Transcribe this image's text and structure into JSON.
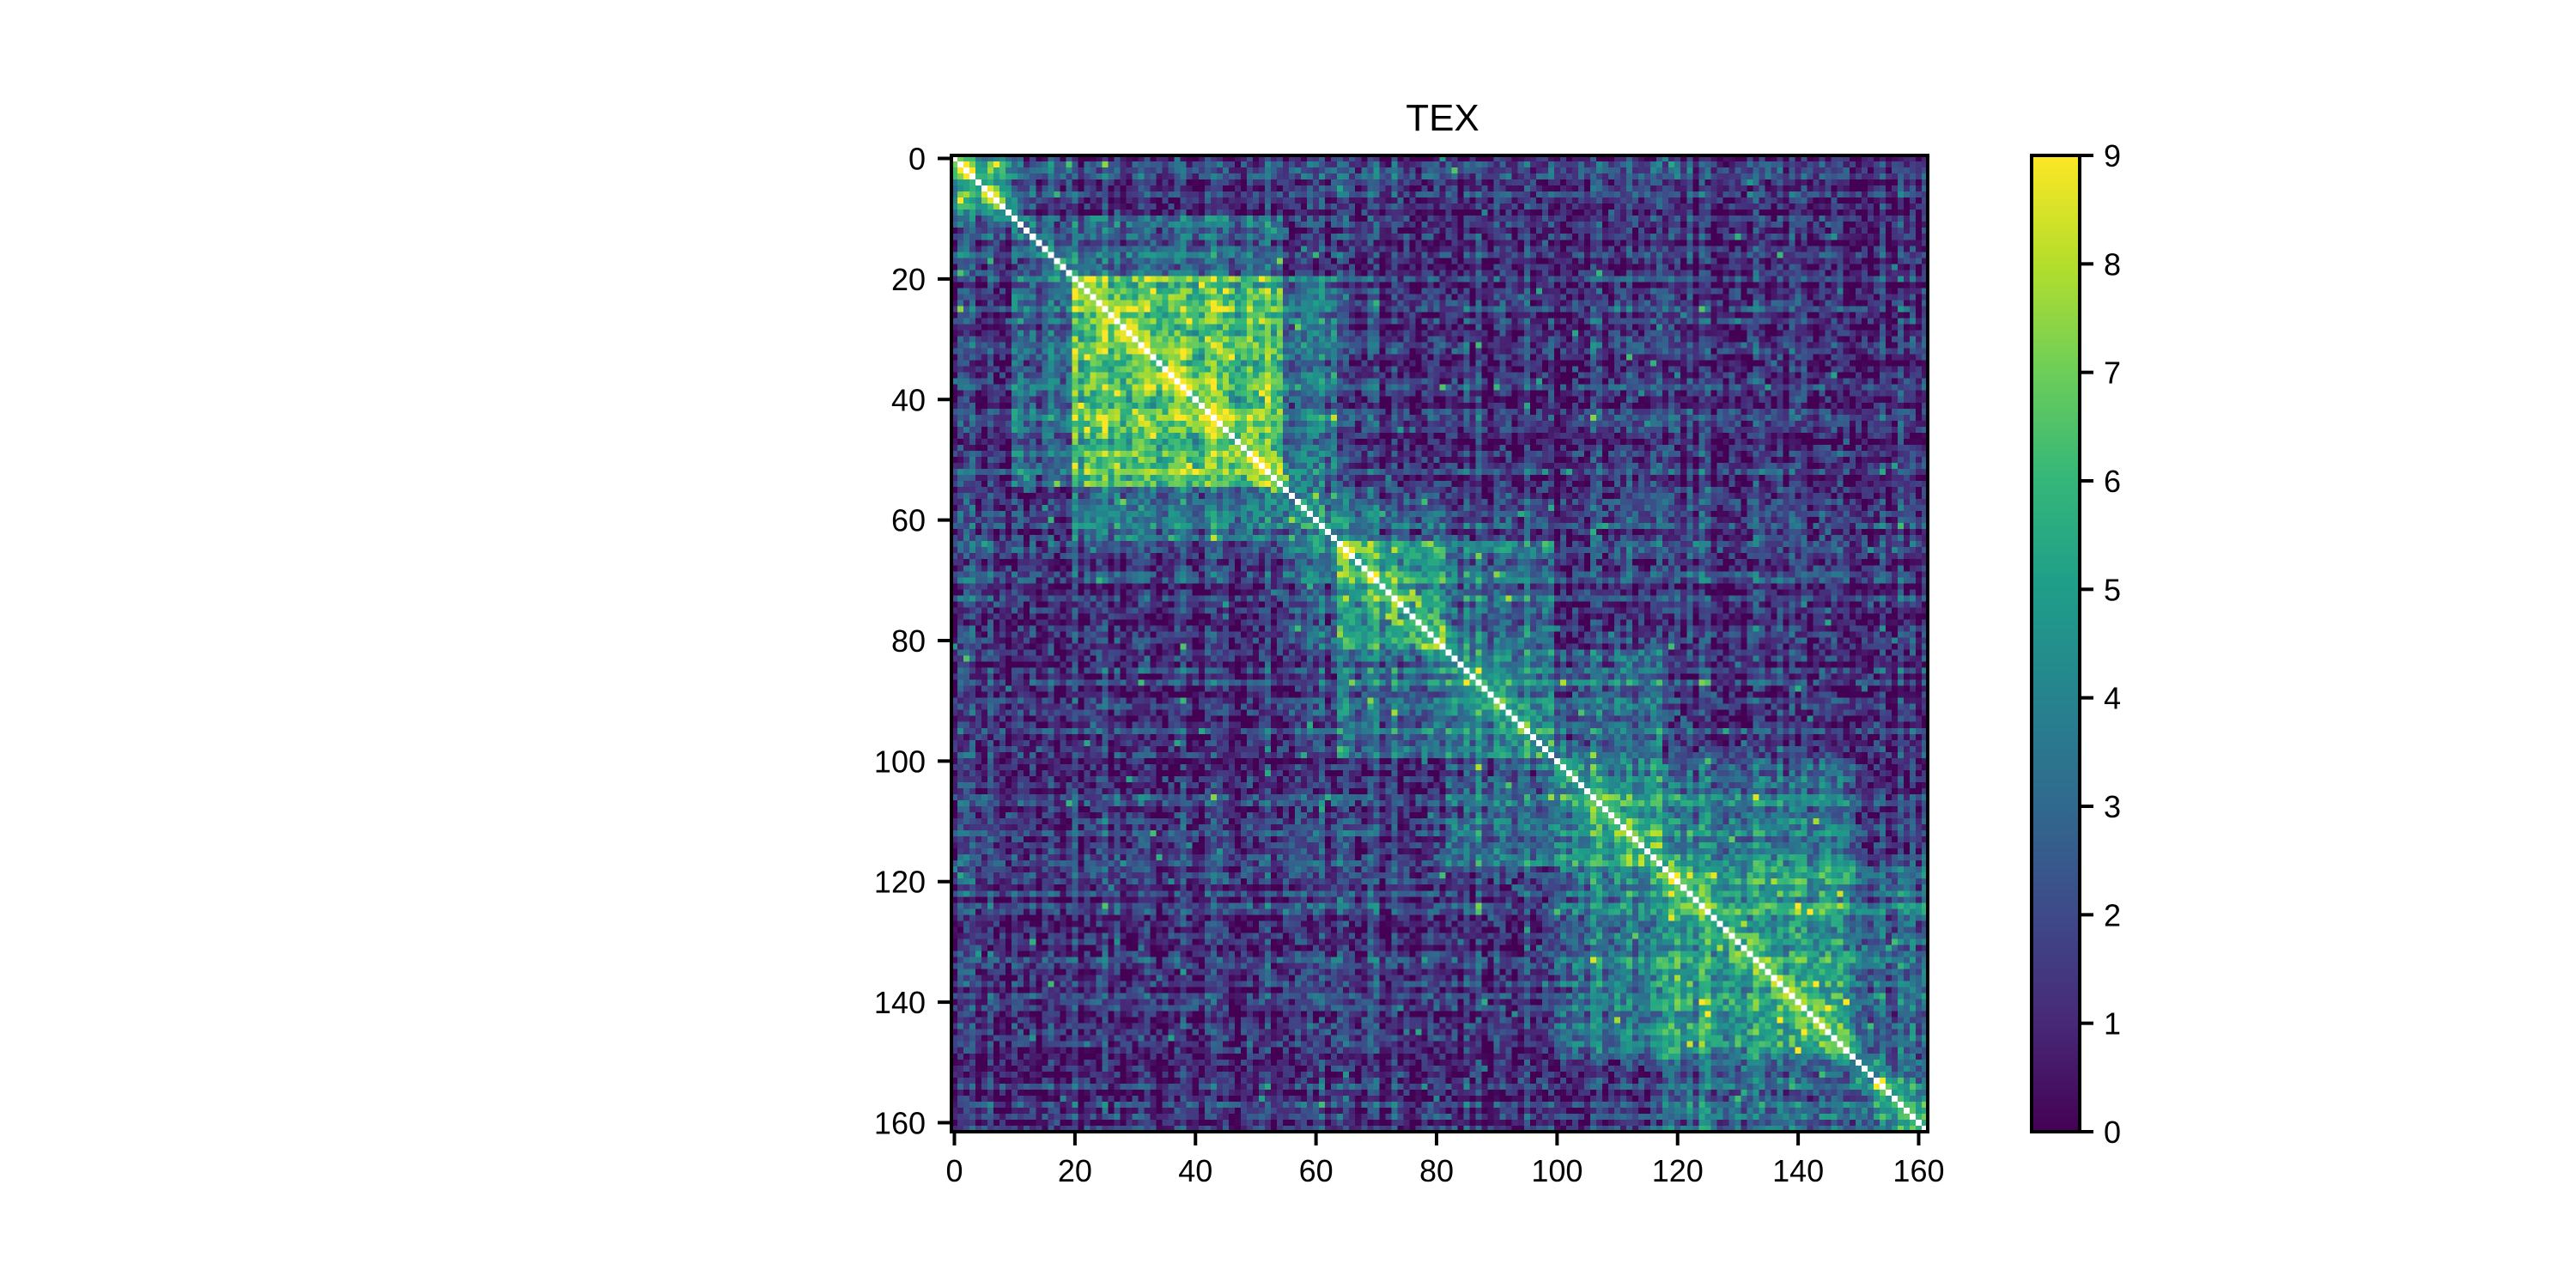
{
  "chart_data": {
    "type": "heatmap",
    "title": "TEX",
    "xlabel": "",
    "ylabel": "",
    "n": 162,
    "xlim": [
      0,
      162
    ],
    "ylim": [
      162,
      0
    ],
    "x_ticks": [
      "0",
      "20",
      "40",
      "60",
      "80",
      "100",
      "120",
      "140",
      "160"
    ],
    "y_ticks": [
      "0",
      "20",
      "40",
      "60",
      "80",
      "100",
      "120",
      "140",
      "160"
    ],
    "colorbar": {
      "min": 0,
      "max": 9,
      "ticks": [
        "0",
        "1",
        "2",
        "3",
        "4",
        "5",
        "6",
        "7",
        "8",
        "9"
      ],
      "colormap": "viridis"
    },
    "diagonal_color": "#ffffff",
    "blocks": [
      {
        "start": 0,
        "end": 10,
        "mean": 5.0
      },
      {
        "start": 10,
        "end": 20,
        "mean": 2.5
      },
      {
        "start": 20,
        "end": 55,
        "mean": 6.5
      },
      {
        "start": 55,
        "end": 64,
        "mean": 2.5
      },
      {
        "start": 64,
        "end": 82,
        "mean": 5.0
      },
      {
        "start": 82,
        "end": 100,
        "mean": 4.0
      },
      {
        "start": 100,
        "end": 118,
        "mean": 4.5
      },
      {
        "start": 118,
        "end": 150,
        "mean": 5.0
      },
      {
        "start": 150,
        "end": 162,
        "mean": 4.0
      }
    ],
    "background_mean": 1.5,
    "peak_cells": [
      {
        "row": 16,
        "col": 16,
        "value": 9
      },
      {
        "row": 24,
        "col": 24,
        "value": 9
      },
      {
        "row": 26,
        "col": 26,
        "value": 9
      },
      {
        "row": 32,
        "col": 32,
        "value": 9
      },
      {
        "row": 42,
        "col": 42,
        "value": 9
      },
      {
        "row": 68,
        "col": 68,
        "value": 9
      },
      {
        "row": 112,
        "col": 112,
        "value": 9
      },
      {
        "row": 134,
        "col": 134,
        "value": 9
      },
      {
        "row": 155,
        "col": 155,
        "value": 9
      }
    ],
    "grid": false,
    "legend": "none"
  }
}
